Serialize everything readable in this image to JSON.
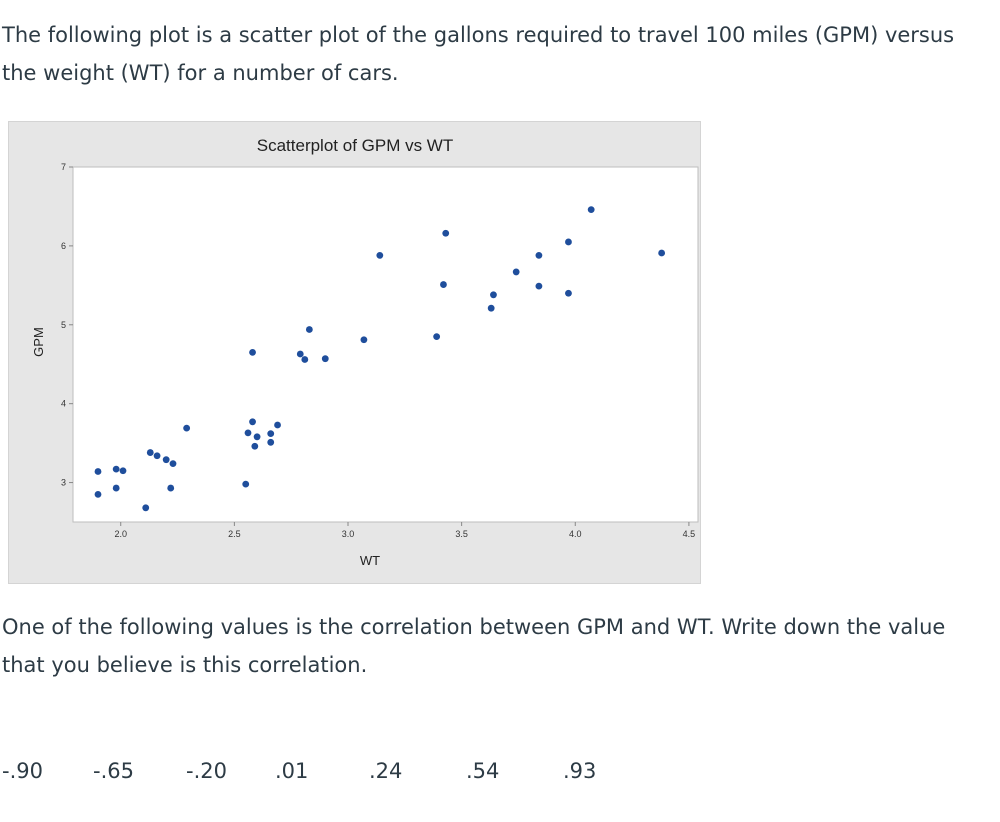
{
  "intro_text": "The following plot is a scatter plot of the gallons required to travel 100 miles (GPM) versus the weight (WT) for a number of cars.",
  "question_text": "One of the following  values is the correlation between GPM and WT.  Write down the value that you believe is this correlation.",
  "choices": [
    "-.90",
    "-.65",
    "-.20",
    ".01",
    ".24",
    ".54",
    ".93"
  ],
  "colors": {
    "marker": "#1f4e9c",
    "panel": "#e6e6e6",
    "plot_bg": "#ffffff"
  },
  "chart_data": {
    "type": "scatter",
    "title": "Scatterplot of GPM vs WT",
    "xlabel": "WT",
    "ylabel": "GPM",
    "xlim": [
      1.79,
      4.54
    ],
    "ylim": [
      2.5,
      7.0
    ],
    "xticks": [
      "2.0",
      "2.5",
      "3.0",
      "3.5",
      "4.0",
      "4.5"
    ],
    "yticks": [
      "3",
      "4",
      "5",
      "6",
      "7"
    ],
    "grid": false,
    "x": [
      1.9,
      1.98,
      2.01,
      1.9,
      1.98,
      2.11,
      2.13,
      2.16,
      2.2,
      2.23,
      2.22,
      2.29,
      2.55,
      2.56,
      2.58,
      2.59,
      2.6,
      2.66,
      2.66,
      2.69,
      2.58,
      2.79,
      2.81,
      2.83,
      2.9,
      3.07,
      3.14,
      3.39,
      3.43,
      3.42,
      3.63,
      3.64,
      3.74,
      3.84,
      3.84,
      3.97,
      3.97,
      4.07,
      4.38
    ],
    "y": [
      3.14,
      3.17,
      3.15,
      2.85,
      2.93,
      2.68,
      3.38,
      3.34,
      3.29,
      3.24,
      2.93,
      3.69,
      2.98,
      3.63,
      3.77,
      3.46,
      3.58,
      3.62,
      3.51,
      3.73,
      4.65,
      4.63,
      4.56,
      4.94,
      4.57,
      4.81,
      5.88,
      4.85,
      6.16,
      5.51,
      5.21,
      5.38,
      5.67,
      5.49,
      5.88,
      6.05,
      5.4,
      6.46,
      5.91
    ]
  }
}
